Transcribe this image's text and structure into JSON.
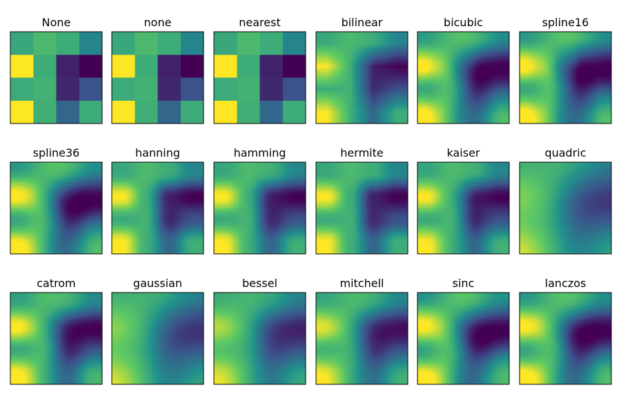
{
  "figure": {
    "colormap": "viridis",
    "colormap_stops": [
      "#440154",
      "#3b528b",
      "#21918c",
      "#5ec962",
      "#fde725"
    ],
    "grid": false,
    "axes_ticks": false
  },
  "chart_data": {
    "type": "heatmap",
    "description_source_grid": "4x4 random image rendered with 18 interpolation methods",
    "matrix": [
      [
        0.6,
        0.68,
        0.62,
        0.45
      ],
      [
        1.0,
        0.62,
        0.1,
        0.0
      ],
      [
        0.61,
        0.64,
        0.12,
        0.25
      ],
      [
        1.0,
        0.63,
        0.33,
        0.62
      ]
    ],
    "vlim": [
      0,
      1
    ],
    "panels": [
      {
        "title": "None",
        "method": "nearest"
      },
      {
        "title": "none",
        "method": "nearest"
      },
      {
        "title": "nearest",
        "method": "nearest"
      },
      {
        "title": "bilinear",
        "method": "bilinear"
      },
      {
        "title": "bicubic",
        "method": "bicubic"
      },
      {
        "title": "spline16",
        "method": "spline16"
      },
      {
        "title": "spline36",
        "method": "spline36"
      },
      {
        "title": "hanning",
        "method": "hanning"
      },
      {
        "title": "hamming",
        "method": "hamming"
      },
      {
        "title": "hermite",
        "method": "hermite"
      },
      {
        "title": "kaiser",
        "method": "kaiser"
      },
      {
        "title": "quadric",
        "method": "quadric"
      },
      {
        "title": "catrom",
        "method": "catrom"
      },
      {
        "title": "gaussian",
        "method": "gaussian"
      },
      {
        "title": "bessel",
        "method": "bessel"
      },
      {
        "title": "mitchell",
        "method": "mitchell"
      },
      {
        "title": "sinc",
        "method": "sinc"
      },
      {
        "title": "lanczos",
        "method": "lanczos"
      }
    ]
  }
}
